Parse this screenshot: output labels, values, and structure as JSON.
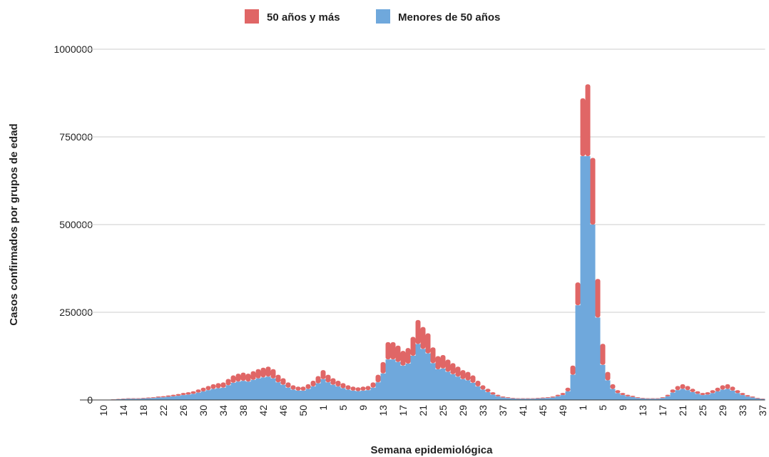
{
  "chart_data": {
    "type": "stacked_bar",
    "x_label": "Semana epidemiológica",
    "y_label": "Casos confirmados por grupos de edad",
    "categories": [
      "10",
      null,
      null,
      null,
      "14",
      null,
      null,
      null,
      "18",
      null,
      null,
      null,
      "22",
      null,
      null,
      null,
      "26",
      null,
      null,
      null,
      "30",
      null,
      null,
      null,
      "34",
      null,
      null,
      null,
      "38",
      null,
      null,
      null,
      "42",
      null,
      null,
      null,
      "46",
      null,
      null,
      null,
      "50",
      null,
      null,
      null,
      "1",
      null,
      null,
      null,
      "5",
      null,
      null,
      null,
      "9",
      null,
      null,
      null,
      "13",
      null,
      null,
      null,
      "17",
      null,
      null,
      null,
      "21",
      null,
      null,
      null,
      "25",
      null,
      null,
      null,
      "29",
      null,
      null,
      null,
      "33",
      null,
      null,
      null,
      "37",
      null,
      null,
      null,
      "41",
      null,
      null,
      null,
      "45",
      null,
      null,
      null,
      "49",
      null,
      null,
      null,
      "1",
      null,
      null,
      null,
      "5",
      null,
      null,
      null,
      "9",
      null,
      null,
      null,
      "13",
      null,
      null,
      null,
      "17",
      null,
      null,
      null,
      "21",
      null,
      null,
      null,
      "25",
      null,
      null,
      null,
      "29",
      null,
      null,
      null,
      "33",
      null,
      null,
      null,
      "37"
    ],
    "series": [
      {
        "name": "50 años y más",
        "color": "#e06666",
        "values": [
          200,
          300,
          600,
          900,
          1200,
          1500,
          1500,
          1500,
          1800,
          2100,
          2400,
          3000,
          3300,
          3900,
          4500,
          5100,
          6000,
          6600,
          7500,
          9000,
          10500,
          12000,
          13500,
          14400,
          15000,
          18000,
          21000,
          22500,
          23400,
          22500,
          24600,
          26400,
          27600,
          28500,
          26400,
          21600,
          18600,
          15000,
          12600,
          11400,
          11400,
          13500,
          16500,
          20400,
          25500,
          21600,
          18600,
          16500,
          14400,
          12600,
          11400,
          10800,
          11400,
          12000,
          15000,
          21600,
          32400,
          49500,
          49500,
          46500,
          42000,
          44400,
          54000,
          68400,
          62400,
          57000,
          45000,
          37500,
          38400,
          34500,
          31500,
          28500,
          25500,
          24000,
          21000,
          16500,
          12600,
          9600,
          6600,
          4500,
          3000,
          2400,
          1800,
          1500,
          1500,
          1500,
          1500,
          1800,
          2100,
          2400,
          3000,
          4500,
          6000,
          10500,
          26000,
          65000,
          165000,
          205000,
          190000,
          110000,
          60000,
          24000,
          13500,
          8400,
          6000,
          4500,
          3600,
          2400,
          1800,
          1500,
          1500,
          1500,
          2400,
          4500,
          9000,
          12000,
          13500,
          12000,
          9600,
          7500,
          6000,
          6600,
          8400,
          10500,
          12600,
          13500,
          11400,
          8400,
          6000,
          4200,
          3000,
          1800,
          1200
        ]
      },
      {
        "name": "Menores de 50 años",
        "color": "#6fa8dc",
        "values": [
          300,
          700,
          1400,
          2100,
          2800,
          3500,
          3500,
          3500,
          4200,
          4900,
          5600,
          7000,
          7700,
          9100,
          10500,
          11900,
          14000,
          15400,
          17500,
          21000,
          24500,
          28000,
          31500,
          33600,
          35000,
          42000,
          49000,
          52500,
          54600,
          52500,
          57400,
          61600,
          64400,
          66500,
          61600,
          50400,
          43400,
          35000,
          29400,
          26600,
          26600,
          31500,
          38500,
          47600,
          59500,
          50400,
          43400,
          38500,
          33600,
          29400,
          26600,
          25200,
          26600,
          28000,
          35000,
          50400,
          75600,
          115500,
          115500,
          108500,
          98000,
          103600,
          126000,
          159600,
          145600,
          133000,
          105000,
          87500,
          89600,
          80500,
          73500,
          66500,
          59500,
          56000,
          49000,
          38500,
          29400,
          22400,
          15400,
          10500,
          7000,
          5600,
          4200,
          3500,
          3500,
          3500,
          3500,
          4200,
          4900,
          5600,
          7000,
          10500,
          14000,
          24500,
          72000,
          270000,
          695000,
          695000,
          500000,
          235000,
          100000,
          56000,
          31500,
          19600,
          14000,
          10500,
          8400,
          5600,
          4200,
          3500,
          3500,
          3500,
          5600,
          10500,
          21000,
          28000,
          31500,
          28000,
          22400,
          17500,
          14000,
          15400,
          19600,
          24500,
          29400,
          31500,
          26600,
          19600,
          14000,
          9800,
          7000,
          4200,
          2800
        ]
      }
    ],
    "ylim": [
      0,
      1000000
    ],
    "yticks": [
      0,
      250000,
      500000,
      750000,
      1000000
    ],
    "grid": true,
    "legend": "top"
  }
}
